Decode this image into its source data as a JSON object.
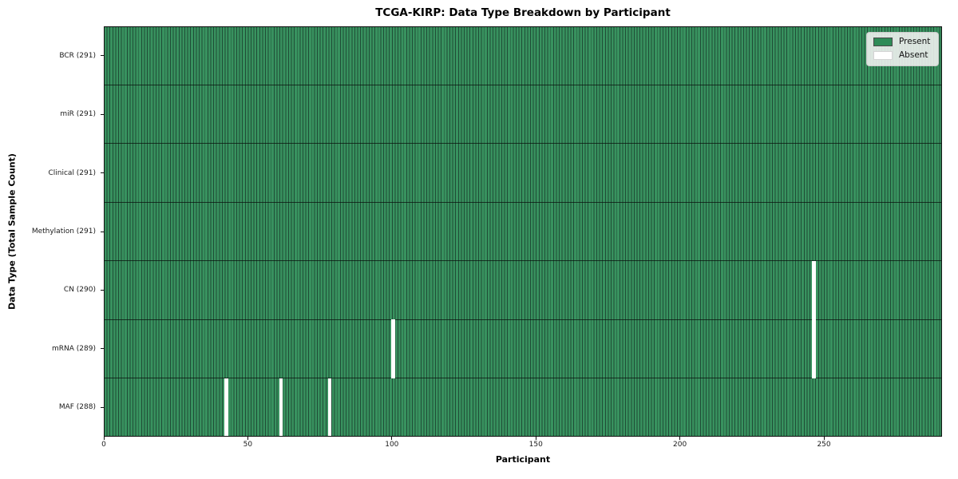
{
  "chart_data": {
    "type": "heatmap",
    "title": "TCGA-KIRP: Data Type Breakdown by Participant",
    "xlabel": "Participant",
    "ylabel": "Data Type (Total Sample Count)",
    "x_range": [
      0,
      291
    ],
    "x_ticks": [
      0,
      50,
      100,
      150,
      200,
      250
    ],
    "participants_total": 291,
    "grid": false,
    "legend": {
      "position": "upper-right",
      "items": [
        {
          "label": "Present",
          "color": "#2e8b57",
          "border": "#4a4a4a"
        },
        {
          "label": "Absent",
          "color": "#ffffff",
          "border": "#d4d4d4"
        }
      ]
    },
    "rows": [
      {
        "data_type": "BCR",
        "label": "BCR (291)",
        "present_count": 291,
        "absent_participants": []
      },
      {
        "data_type": "miR",
        "label": "miR (291)",
        "present_count": 291,
        "absent_participants": []
      },
      {
        "data_type": "Clinical",
        "label": "Clinical (291)",
        "present_count": 291,
        "absent_participants": []
      },
      {
        "data_type": "Methylation",
        "label": "Methylation (291)",
        "present_count": 291,
        "absent_participants": []
      },
      {
        "data_type": "CN",
        "label": "CN (290)",
        "present_count": 290,
        "absent_participants": [
          246
        ]
      },
      {
        "data_type": "mRNA",
        "label": "mRNA (289)",
        "present_count": 289,
        "absent_participants": [
          100,
          246
        ]
      },
      {
        "data_type": "MAF",
        "label": "MAF (288)",
        "present_count": 288,
        "absent_participants": [
          42,
          61,
          78
        ]
      }
    ],
    "colors": {
      "present_fill": "#38925f",
      "bar_edge": "#1f4c36",
      "absent_fill": "#ffffff",
      "row_divider": "rgba(10,18,14,0.75)",
      "axis": "#111111"
    }
  }
}
